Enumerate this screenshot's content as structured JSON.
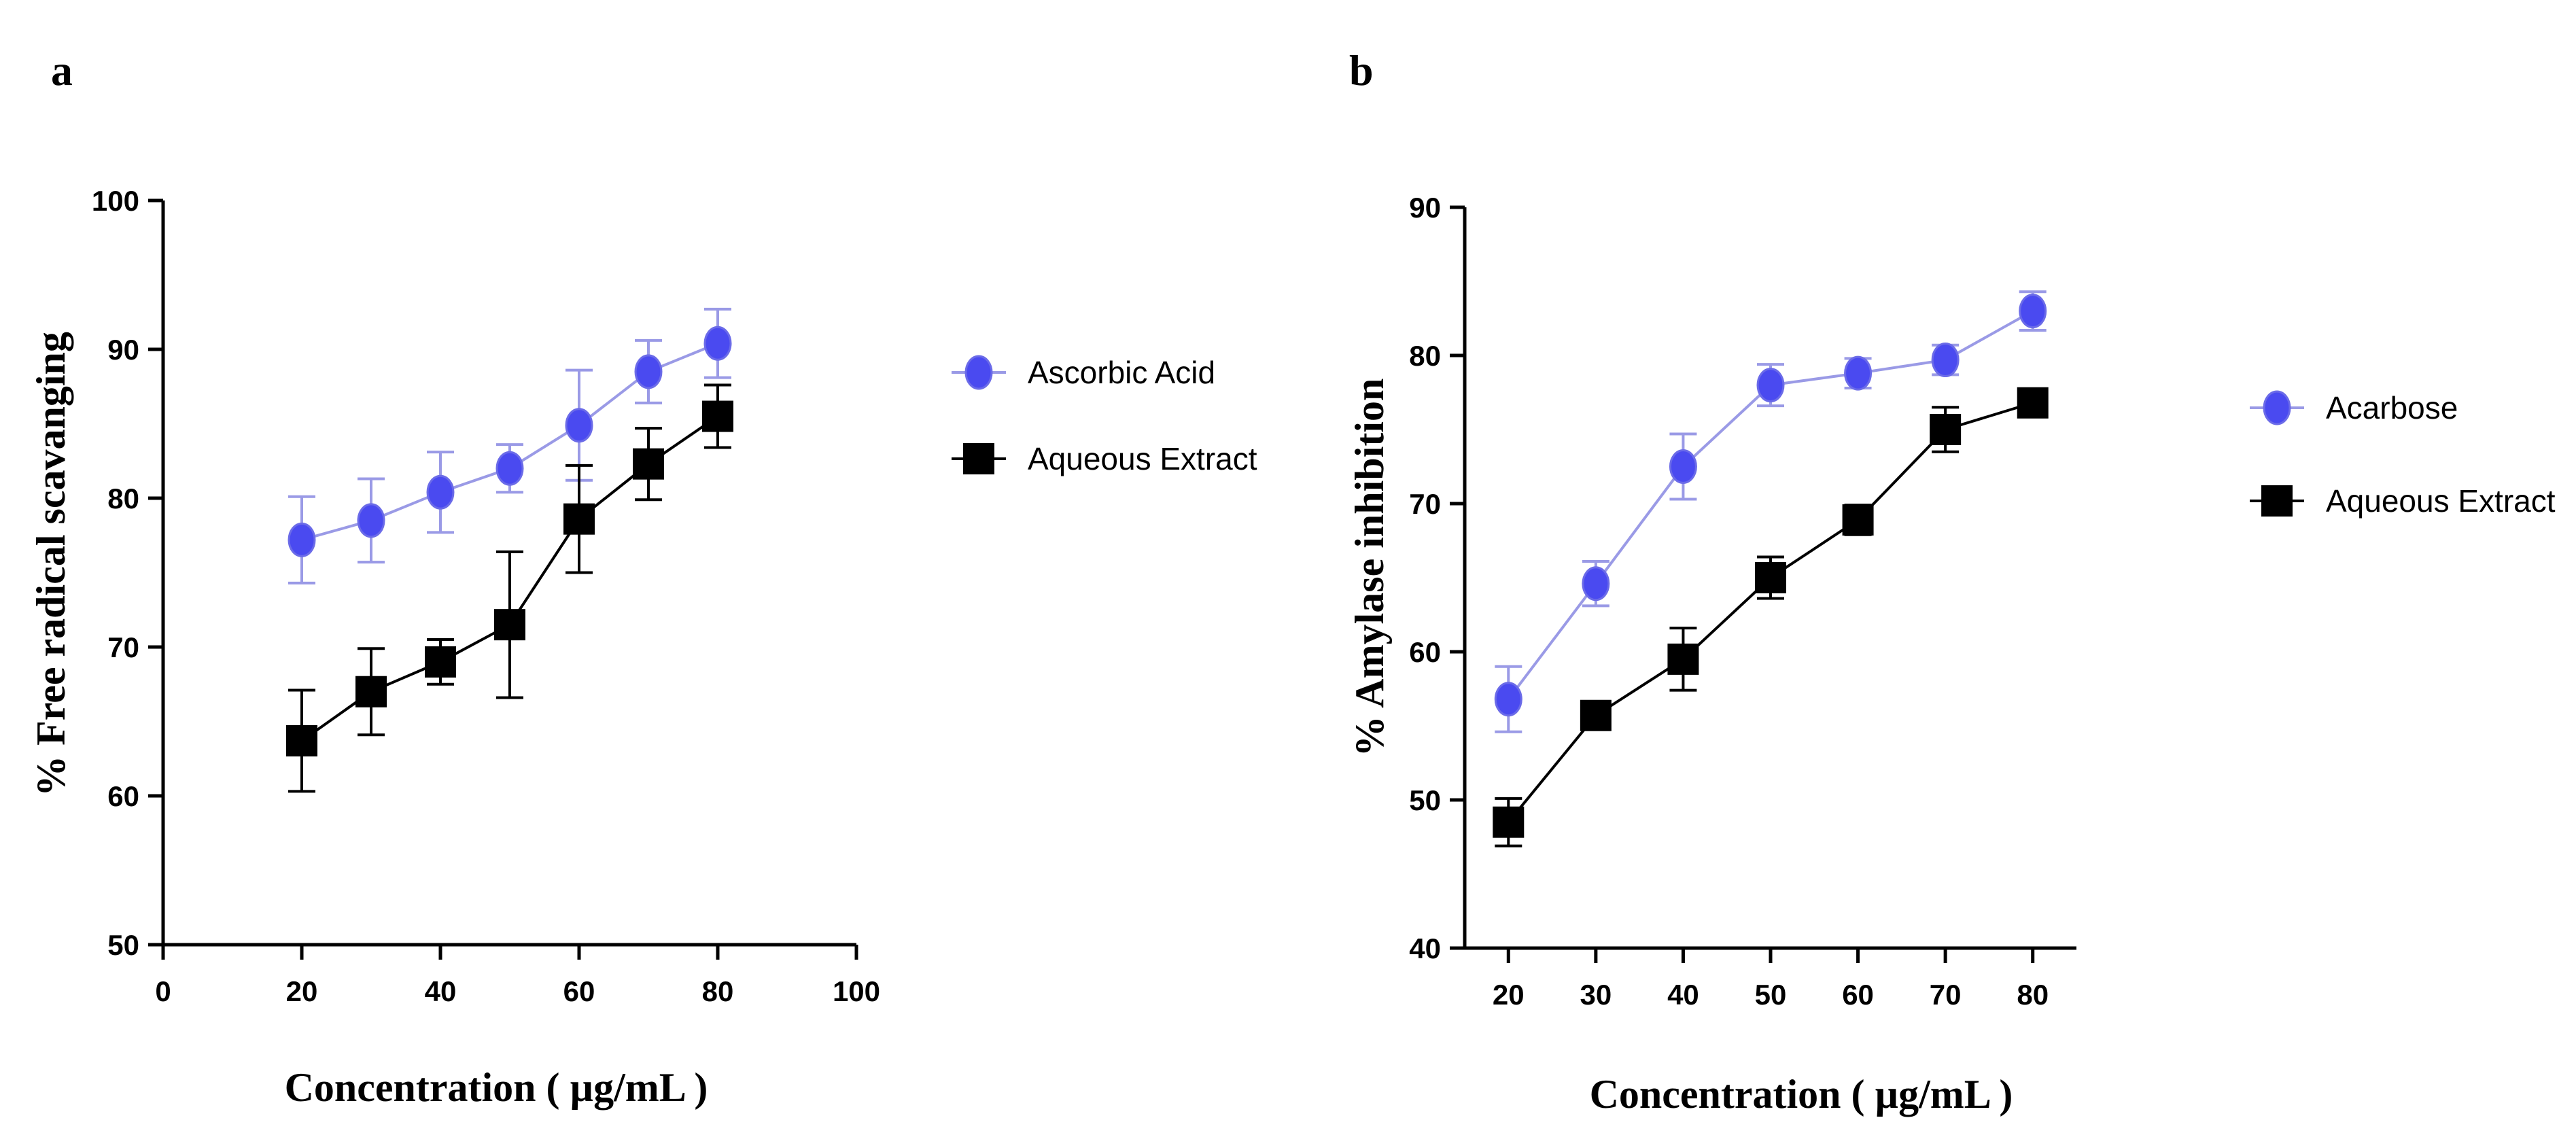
{
  "colors": {
    "blue_marker": "#4a4af0",
    "blue_line": "#9a9ae6",
    "black": "#000000"
  },
  "chart_data": [
    {
      "panel_label": "a",
      "type": "line",
      "xlabel": "Concentration ( µg/mL )",
      "ylabel": "% Free radical scavanging",
      "xlim": [
        0,
        100
      ],
      "ylim": [
        50,
        100
      ],
      "xticks": [
        "0",
        "20",
        "40",
        "60",
        "80",
        "100"
      ],
      "yticks": [
        "50",
        "60",
        "70",
        "80",
        "90",
        "100"
      ],
      "legend": "right",
      "series": [
        {
          "name": "Ascorbic Acid",
          "marker": "circle",
          "x": [
            20,
            30,
            40,
            50,
            60,
            70,
            80
          ],
          "y": [
            77.2,
            78.5,
            80.4,
            82.0,
            84.9,
            88.5,
            90.4
          ],
          "err": [
            2.9,
            2.8,
            2.7,
            1.6,
            3.7,
            2.1,
            2.3
          ]
        },
        {
          "name": "Aqueous Extract",
          "marker": "square",
          "x": [
            20,
            30,
            40,
            50,
            60,
            70,
            80
          ],
          "y": [
            63.7,
            67.0,
            69.0,
            71.5,
            78.6,
            82.3,
            85.5
          ],
          "err": [
            3.4,
            2.9,
            1.5,
            4.9,
            3.6,
            2.4,
            2.1
          ]
        }
      ]
    },
    {
      "panel_label": "b",
      "type": "line",
      "xlabel": "Concentration ( µg/mL )",
      "ylabel": "% Amylase inhibition",
      "xlim": [
        15,
        85
      ],
      "ylim": [
        40,
        90
      ],
      "xticks": [
        "20",
        "30",
        "40",
        "50",
        "60",
        "70",
        "80"
      ],
      "yticks": [
        "40",
        "50",
        "60",
        "70",
        "80",
        "90"
      ],
      "legend": "right",
      "series": [
        {
          "name": "Acarbose",
          "marker": "circle",
          "x": [
            20,
            30,
            40,
            50,
            60,
            70,
            80
          ],
          "y": [
            56.8,
            64.6,
            72.5,
            78.0,
            78.8,
            79.7,
            83.0
          ],
          "err": [
            2.2,
            1.5,
            2.2,
            1.4,
            1.0,
            1.0,
            1.3
          ]
        },
        {
          "name": "Aqueous Extract",
          "marker": "square",
          "x": [
            20,
            30,
            40,
            50,
            60,
            70,
            80
          ],
          "y": [
            48.5,
            55.7,
            59.5,
            65.0,
            68.9,
            75.0,
            76.8
          ],
          "err": [
            1.6,
            0.7,
            2.1,
            1.4,
            1.0,
            1.5,
            0.6
          ]
        }
      ]
    }
  ]
}
